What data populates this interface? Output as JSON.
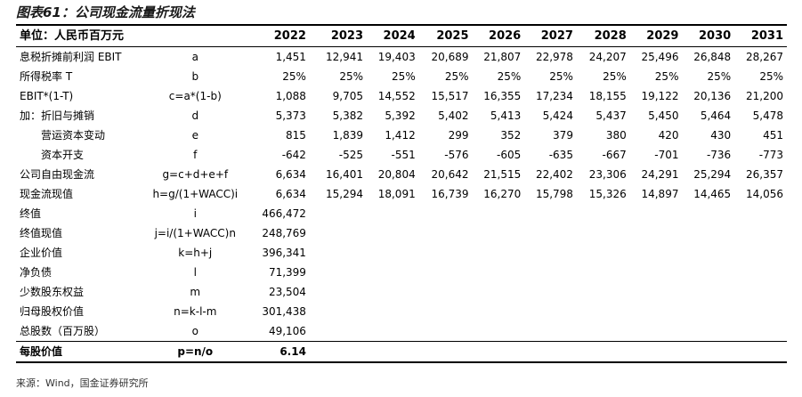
{
  "title": "图表61：公司现金流量折现法",
  "header": {
    "label": "单位：人民币百万元",
    "formula": "",
    "years": [
      "2022",
      "2023",
      "2024",
      "2025",
      "2026",
      "2027",
      "2028",
      "2029",
      "2030",
      "2031"
    ]
  },
  "rows": [
    {
      "label": "息税折摊前利润 EBIT",
      "formula": "a",
      "indent": false,
      "values": [
        "1,451",
        "12,941",
        "19,403",
        "20,689",
        "21,807",
        "22,978",
        "24,207",
        "25,496",
        "26,848",
        "28,267"
      ]
    },
    {
      "label": "所得税率 T",
      "formula": "b",
      "indent": false,
      "values": [
        "25%",
        "25%",
        "25%",
        "25%",
        "25%",
        "25%",
        "25%",
        "25%",
        "25%",
        "25%"
      ]
    },
    {
      "label": "EBIT*(1-T)",
      "formula": "c=a*(1-b)",
      "indent": false,
      "values": [
        "1,088",
        "9,705",
        "14,552",
        "15,517",
        "16,355",
        "17,234",
        "18,155",
        "19,122",
        "20,136",
        "21,200"
      ]
    },
    {
      "label": "加：折旧与摊销",
      "formula": "d",
      "indent": false,
      "values": [
        "5,373",
        "5,382",
        "5,392",
        "5,402",
        "5,413",
        "5,424",
        "5,437",
        "5,450",
        "5,464",
        "5,478"
      ]
    },
    {
      "label": "营运资本变动",
      "formula": "e",
      "indent": true,
      "values": [
        "815",
        "1,839",
        "1,412",
        "299",
        "352",
        "379",
        "380",
        "420",
        "430",
        "451"
      ]
    },
    {
      "label": "资本开支",
      "formula": "f",
      "indent": true,
      "values": [
        "-642",
        "-525",
        "-551",
        "-576",
        "-605",
        "-635",
        "-667",
        "-701",
        "-736",
        "-773"
      ]
    },
    {
      "label": "公司自由现金流",
      "formula": "g=c+d+e+f",
      "indent": false,
      "values": [
        "6,634",
        "16,401",
        "20,804",
        "20,642",
        "21,515",
        "22,402",
        "23,306",
        "24,291",
        "25,294",
        "26,357"
      ]
    },
    {
      "label": "现金流现值",
      "formula": "h=g/(1+WACC)i",
      "indent": false,
      "values": [
        "6,634",
        "15,294",
        "18,091",
        "16,739",
        "16,270",
        "15,798",
        "15,326",
        "14,897",
        "14,465",
        "14,056"
      ]
    },
    {
      "label": "终值",
      "formula": "i",
      "indent": false,
      "values": [
        "466,472",
        "",
        "",
        "",
        "",
        "",
        "",
        "",
        "",
        ""
      ]
    },
    {
      "label": "终值现值",
      "formula": "j=i/(1+WACC)n",
      "indent": false,
      "values": [
        "248,769",
        "",
        "",
        "",
        "",
        "",
        "",
        "",
        "",
        ""
      ]
    },
    {
      "label": "企业价值",
      "formula": "k=h+j",
      "indent": false,
      "values": [
        "396,341",
        "",
        "",
        "",
        "",
        "",
        "",
        "",
        "",
        ""
      ]
    },
    {
      "label": "净负债",
      "formula": "l",
      "indent": false,
      "values": [
        "71,399",
        "",
        "",
        "",
        "",
        "",
        "",
        "",
        "",
        ""
      ]
    },
    {
      "label": "少数股东权益",
      "formula": "m",
      "indent": false,
      "values": [
        "23,504",
        "",
        "",
        "",
        "",
        "",
        "",
        "",
        "",
        ""
      ]
    },
    {
      "label": "归母股权价值",
      "formula": "n=k-l-m",
      "indent": false,
      "values": [
        "301,438",
        "",
        "",
        "",
        "",
        "",
        "",
        "",
        "",
        ""
      ]
    },
    {
      "label": "总股数（百万股）",
      "formula": "o",
      "indent": false,
      "values": [
        "49,106",
        "",
        "",
        "",
        "",
        "",
        "",
        "",
        "",
        ""
      ]
    }
  ],
  "final_row": {
    "label": "每股价值",
    "formula": "p=n/o",
    "values": [
      "6.14",
      "",
      "",
      "",
      "",
      "",
      "",
      "",
      "",
      ""
    ]
  },
  "source": "来源：Wind，国金证券研究所"
}
